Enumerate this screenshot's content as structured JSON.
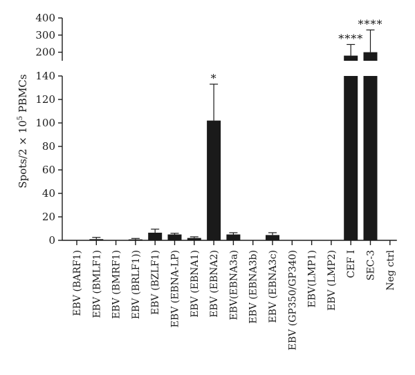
{
  "chart_data": {
    "type": "bar",
    "title": "",
    "xlabel": "",
    "ylabel": "Spots/2 × 10",
    "ylabel_sup": "5",
    "ylabel_suffix": " PBMCs",
    "axis_break": true,
    "ylim_lower": [
      0,
      140
    ],
    "ylim_upper": [
      150,
      400
    ],
    "yticks_lower": [
      "0",
      "20",
      "40",
      "60",
      "80",
      "100",
      "120",
      "140"
    ],
    "yticks_upper": [
      "200",
      "300",
      "400"
    ],
    "categories": [
      "EBV (BARF1)",
      "EBV (BMLF1)",
      "EBV (BMRF1)",
      "EBV (BRLF1))",
      "EBV (BZLF1)",
      "EBV (EBNA-LP)",
      "EBV (EBNA1)",
      "EBV (EBNA2)",
      "EBV(EBNA3a)",
      "EBV (EBNA3b)",
      "EBV (EBNA3c)",
      "EBV (GP350/GP340)",
      "EBV(LMP1)",
      "EBV (LMP2)",
      "CEF I",
      "SEC-3",
      "Neg ctrl"
    ],
    "values": [
      0,
      1,
      0,
      0.8,
      6.5,
      5,
      2,
      102,
      5,
      0,
      4.5,
      0,
      0,
      0,
      180,
      200,
      0
    ],
    "errors": [
      0,
      1.5,
      0,
      0.8,
      3,
      1,
      1,
      31,
      1.5,
      0,
      2,
      0,
      0,
      0,
      65,
      130,
      0
    ],
    "significance": [
      "",
      "",
      "",
      "",
      "",
      "",
      "",
      "*",
      "",
      "",
      "",
      "",
      "",
      "",
      "****",
      "****",
      ""
    ],
    "bar_color": "#1a1a1a",
    "grid": false,
    "legend": "none"
  }
}
